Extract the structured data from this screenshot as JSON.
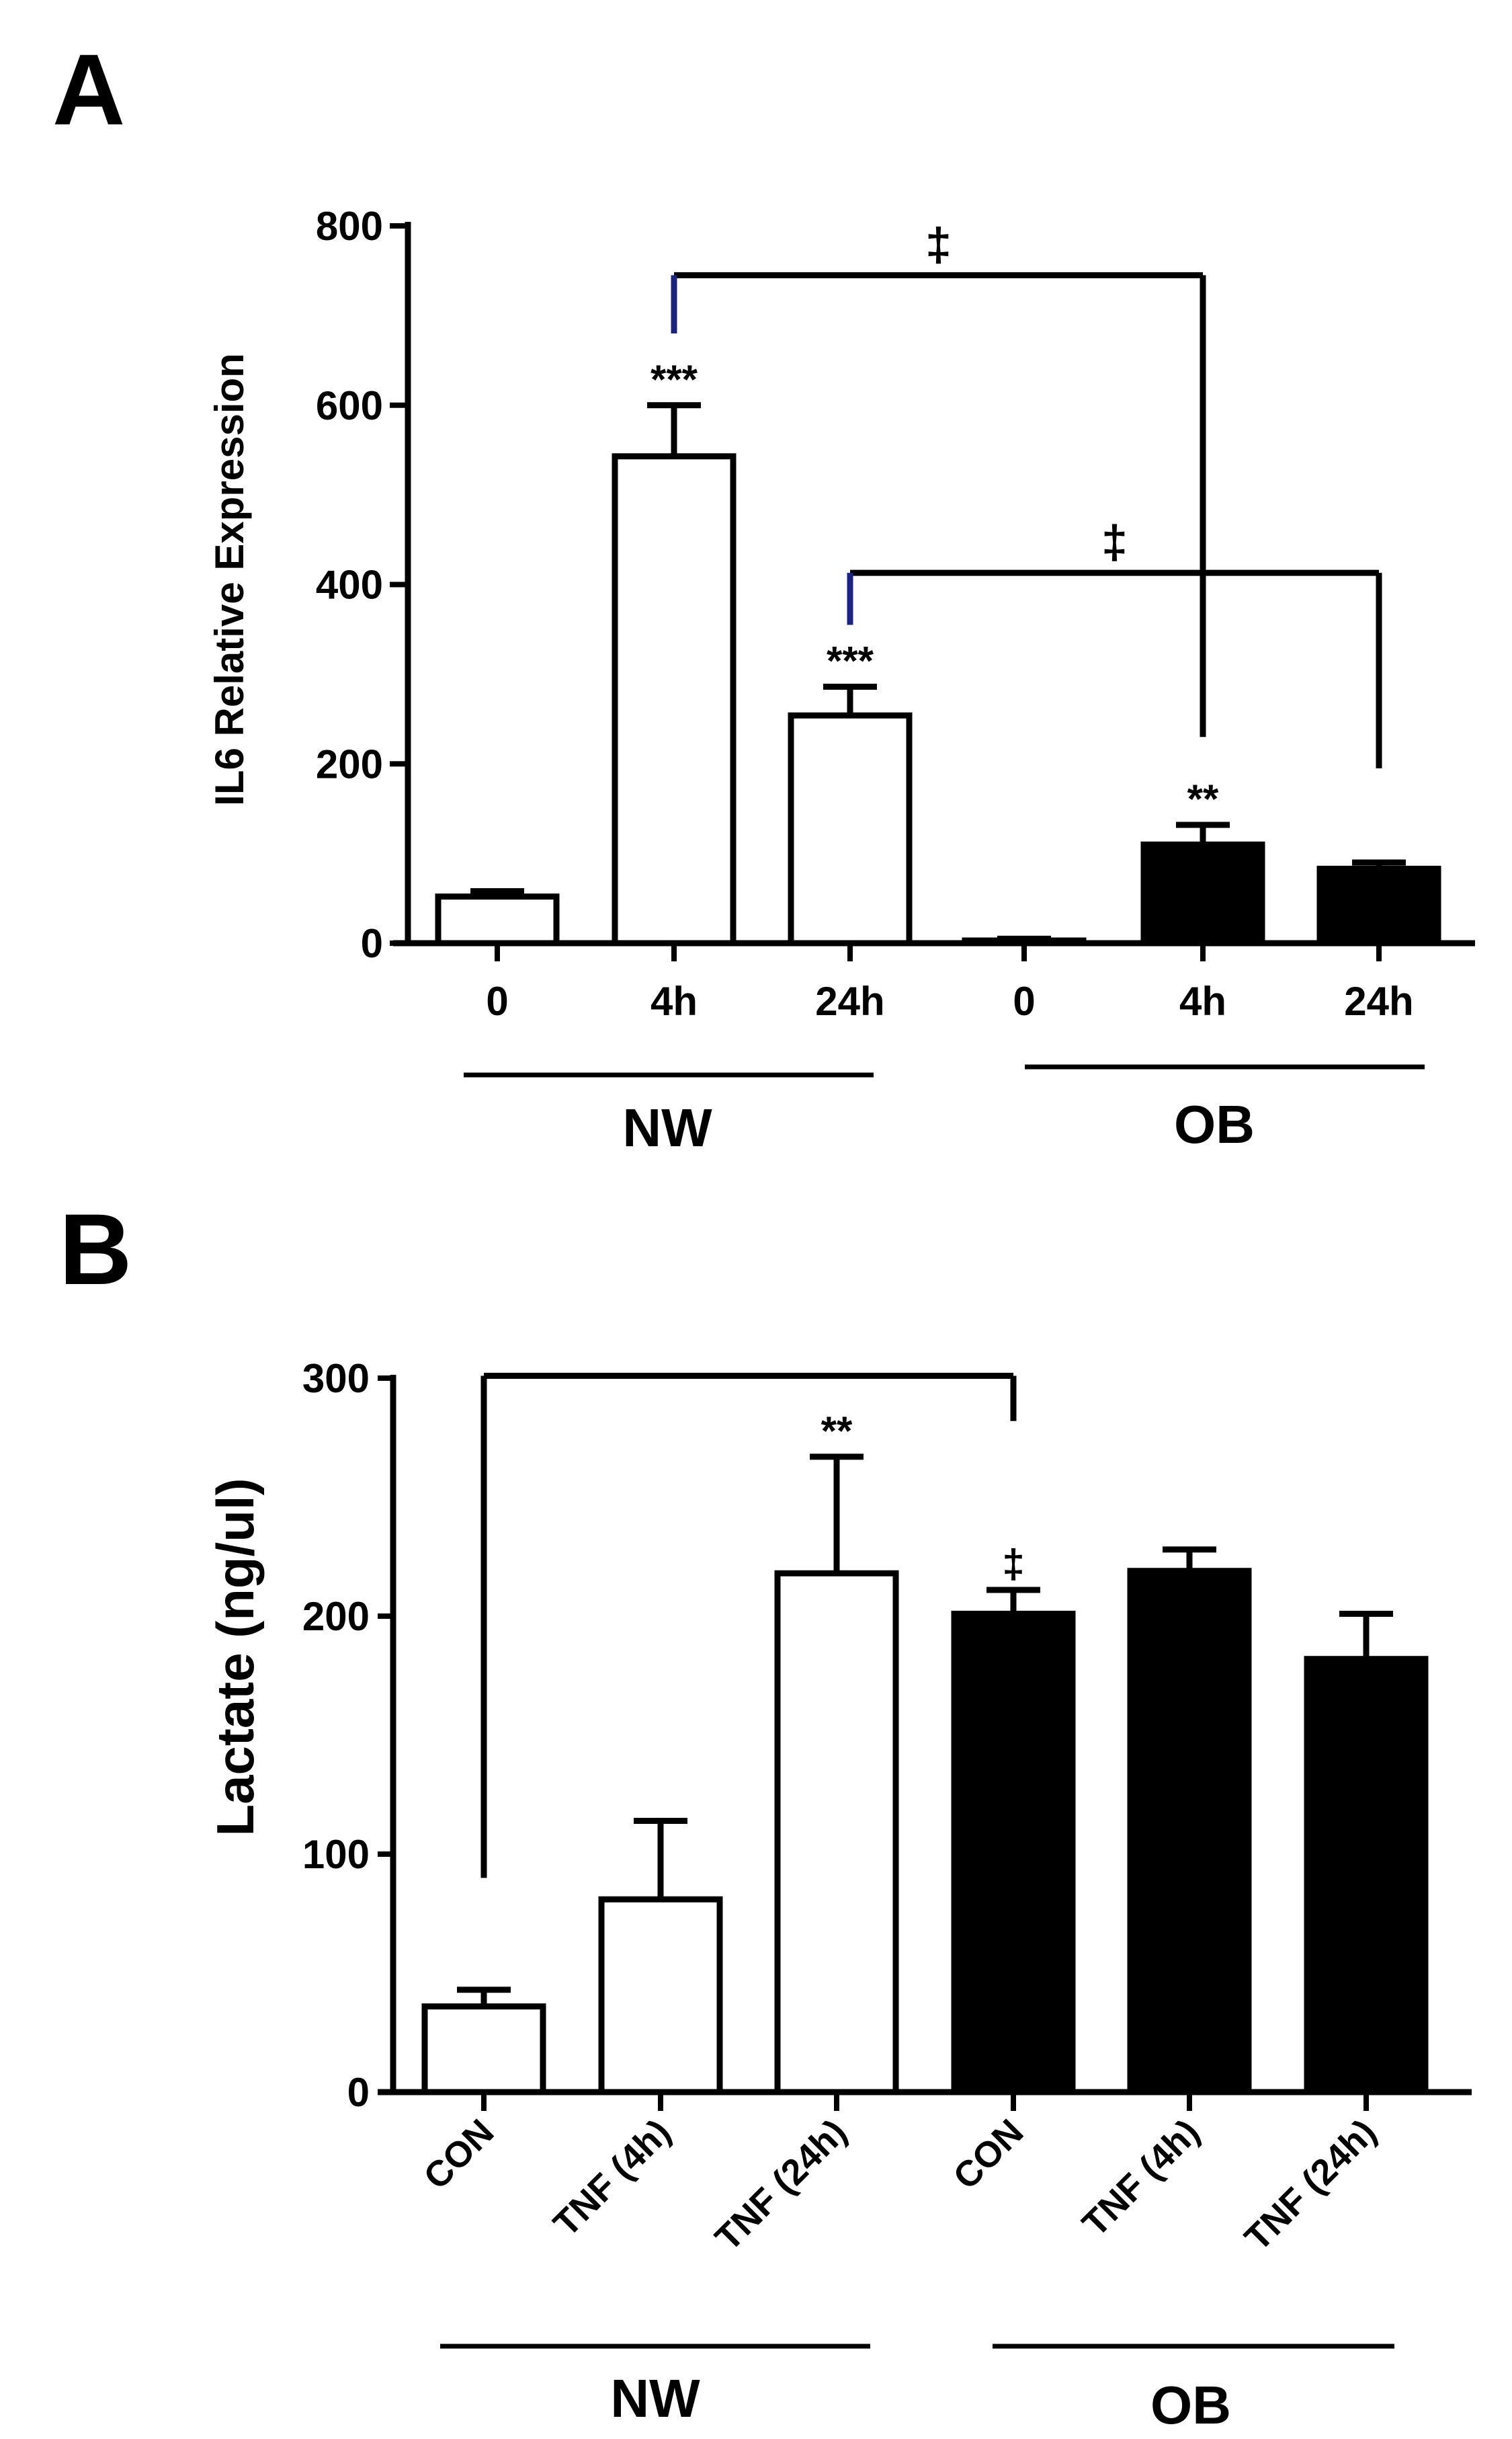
{
  "colors": {
    "ink": "#000000",
    "open_fill": "#ffffff",
    "solid_fill": "#000000",
    "bracket_blue": "#1a237e"
  },
  "chart_data": [
    {
      "panel": "A",
      "type": "bar",
      "ylabel": "IL6 Relative Expression",
      "ylim": [
        0,
        800
      ],
      "yticks": [
        0,
        200,
        400,
        600,
        800
      ],
      "categories": [
        "0",
        "4h",
        "24h",
        "0",
        "4h",
        "24h"
      ],
      "groups": [
        {
          "name": "NW",
          "indices": [
            0,
            1,
            2
          ],
          "fill": "open"
        },
        {
          "name": "OB",
          "indices": [
            3,
            4,
            5
          ],
          "fill": "solid"
        }
      ],
      "values": [
        52,
        543,
        254,
        3,
        110,
        83
      ],
      "errors": [
        6,
        57,
        32,
        2,
        22,
        7
      ],
      "significance": [
        "",
        "***",
        "***",
        "",
        "**",
        ""
      ],
      "comparisons": [
        {
          "from": 1,
          "to": 4,
          "y": 745,
          "left_end": 680,
          "right_end": 230,
          "label": "‡"
        },
        {
          "from": 2,
          "to": 5,
          "y": 413,
          "left_end": 355,
          "right_end": 195,
          "label": "‡"
        }
      ]
    },
    {
      "panel": "B",
      "type": "bar",
      "ylabel": "Lactate (ng/ul)",
      "ylim": [
        0,
        300
      ],
      "yticks": [
        0,
        100,
        200,
        300
      ],
      "categories": [
        "CON",
        "TNF (4h)",
        "TNF (24h)",
        "CON",
        "TNF (4h)",
        "TNF (24h)"
      ],
      "groups": [
        {
          "name": "NW",
          "indices": [
            0,
            1,
            2
          ],
          "fill": "open"
        },
        {
          "name": "OB",
          "indices": [
            3,
            4,
            5
          ],
          "fill": "solid"
        }
      ],
      "values": [
        36,
        81,
        218,
        201,
        219,
        182
      ],
      "errors": [
        7,
        33,
        49,
        10,
        9,
        19
      ],
      "significance": [
        "",
        "",
        "**",
        "‡",
        "",
        ""
      ],
      "comparisons": [
        {
          "from": 0,
          "to": 3,
          "y": 301,
          "left_end": 90,
          "right_end": 282,
          "label": ""
        }
      ]
    }
  ]
}
